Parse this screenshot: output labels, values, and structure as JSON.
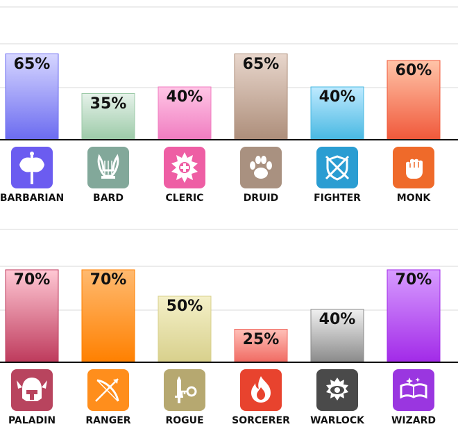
{
  "chart_data": [
    {
      "type": "bar",
      "categories": [
        "BARBARIAN",
        "BARD",
        "CLERIC",
        "DRUID",
        "FIGHTER",
        "MONK"
      ],
      "values": [
        65,
        35,
        40,
        65,
        40,
        60
      ],
      "value_labels": [
        "65%",
        "35%",
        "40%",
        "65%",
        "40%",
        "60%"
      ],
      "ylim": [
        0,
        100
      ],
      "grid": true,
      "colors": [
        [
          "#d6d6ff",
          "#6b6bf0"
        ],
        [
          "#e6f2ea",
          "#9ccaa8"
        ],
        [
          "#ffc6e6",
          "#f07cc0"
        ],
        [
          "#e8d6cc",
          "#ad8e7a"
        ],
        [
          "#bfeaff",
          "#48b8e2"
        ],
        [
          "#ffc4a8",
          "#f0583a"
        ]
      ]
    },
    {
      "type": "bar",
      "categories": [
        "PALADIN",
        "RANGER",
        "ROGUE",
        "SORCERER",
        "WARLOCK",
        "WIZARD"
      ],
      "values": [
        70,
        70,
        50,
        25,
        40,
        70
      ],
      "value_labels": [
        "70%",
        "70%",
        "50%",
        "25%",
        "40%",
        "70%"
      ],
      "ylim": [
        0,
        100
      ],
      "grid": true,
      "colors": [
        [
          "#ffc8d4",
          "#be3a5c"
        ],
        [
          "#ffba70",
          "#ff8000"
        ],
        [
          "#f4f0c8",
          "#d8d08c"
        ],
        [
          "#ffc0b8",
          "#f06a62"
        ],
        [
          "#f0f0f0",
          "#8a8a8a"
        ],
        [
          "#d79cff",
          "#a22ae8"
        ]
      ]
    }
  ],
  "icons": [
    {
      "name": "axe-icon",
      "color": "#6b5cf0"
    },
    {
      "name": "lyre-icon",
      "color": "#82a89a"
    },
    {
      "name": "holy-symbol-icon",
      "color": "#ee5ea4"
    },
    {
      "name": "paw-icon",
      "color": "#a99180"
    },
    {
      "name": "crossed-swords-shield-icon",
      "color": "#2a9dd2"
    },
    {
      "name": "fist-icon",
      "color": "#ef6a2a"
    },
    {
      "name": "winged-helmet-icon",
      "color": "#b8445e"
    },
    {
      "name": "bow-icon",
      "color": "#ff8e1c"
    },
    {
      "name": "dagger-key-icon",
      "color": "#b6a870"
    },
    {
      "name": "flame-icon",
      "color": "#e8432e"
    },
    {
      "name": "eye-icon",
      "color": "#4a4a4a"
    },
    {
      "name": "spellbook-icon",
      "color": "#9a36e0"
    }
  ]
}
